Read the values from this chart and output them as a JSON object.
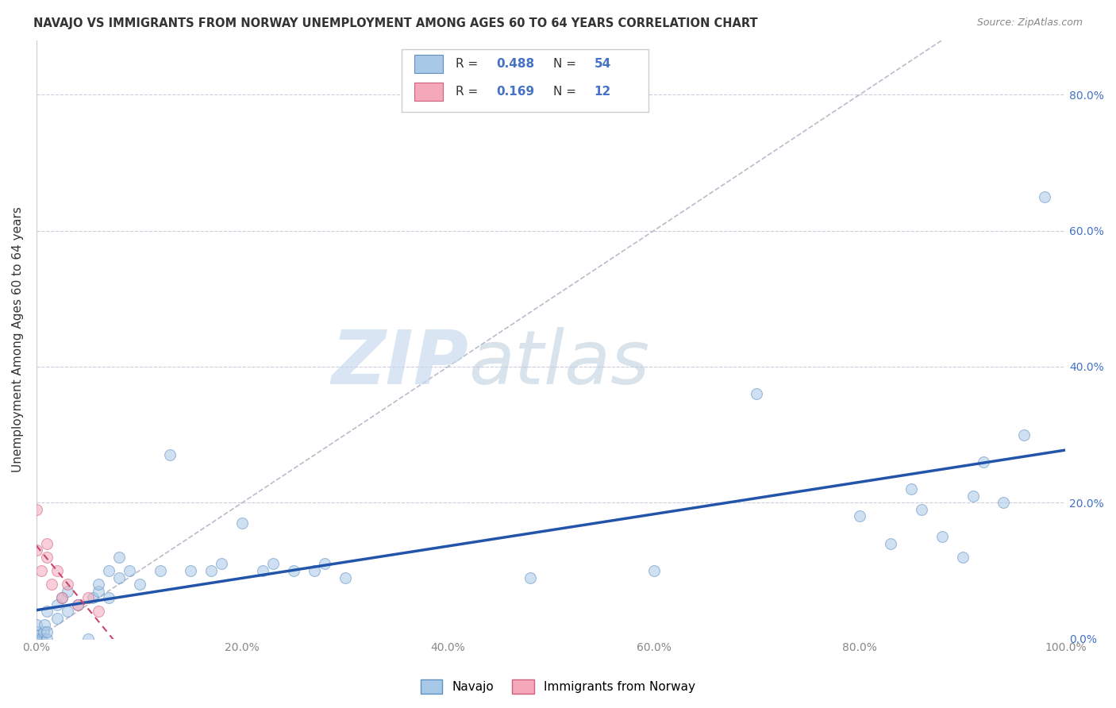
{
  "title": "NAVAJO VS IMMIGRANTS FROM NORWAY UNEMPLOYMENT AMONG AGES 60 TO 64 YEARS CORRELATION CHART",
  "source": "Source: ZipAtlas.com",
  "ylabel": "Unemployment Among Ages 60 to 64 years",
  "xlim": [
    0,
    1.0
  ],
  "ylim": [
    0,
    0.88
  ],
  "xticks": [
    0.0,
    0.2,
    0.4,
    0.6,
    0.8,
    1.0
  ],
  "yticks": [
    0.0,
    0.2,
    0.4,
    0.6,
    0.8
  ],
  "xticklabels": [
    "0.0%",
    "20.0%",
    "40.0%",
    "60.0%",
    "80.0%",
    "100.0%"
  ],
  "yticklabels_right": [
    "0.0%",
    "20.0%",
    "40.0%",
    "60.0%",
    "80.0%"
  ],
  "navajo_color": "#A8C8E8",
  "norway_color": "#F4A8B8",
  "navajo_edge_color": "#6090C0",
  "norway_edge_color": "#D06080",
  "line_color_navajo": "#2255AA",
  "line_color_norway": "#CC4466",
  "diagonal_color": "#BBBBCC",
  "R_navajo": "0.488",
  "N_navajo": "54",
  "R_norway": "0.169",
  "N_norway": "12",
  "navajo_x": [
    0.0,
    0.0,
    0.0,
    0.0,
    0.0,
    0.0,
    0.005,
    0.007,
    0.008,
    0.01,
    0.01,
    0.01,
    0.02,
    0.02,
    0.025,
    0.03,
    0.03,
    0.04,
    0.05,
    0.055,
    0.06,
    0.06,
    0.07,
    0.07,
    0.08,
    0.08,
    0.09,
    0.1,
    0.12,
    0.13,
    0.15,
    0.17,
    0.18,
    0.2,
    0.22,
    0.23,
    0.25,
    0.27,
    0.28,
    0.3,
    0.48,
    0.6,
    0.7,
    0.8,
    0.83,
    0.85,
    0.86,
    0.88,
    0.9,
    0.91,
    0.92,
    0.94,
    0.96,
    0.98
  ],
  "navajo_y": [
    0.0,
    0.0,
    0.0,
    0.005,
    0.01,
    0.02,
    0.0,
    0.01,
    0.02,
    0.0,
    0.01,
    0.04,
    0.03,
    0.05,
    0.06,
    0.04,
    0.07,
    0.05,
    0.0,
    0.06,
    0.07,
    0.08,
    0.06,
    0.1,
    0.09,
    0.12,
    0.1,
    0.08,
    0.1,
    0.27,
    0.1,
    0.1,
    0.11,
    0.17,
    0.1,
    0.11,
    0.1,
    0.1,
    0.11,
    0.09,
    0.09,
    0.1,
    0.36,
    0.18,
    0.14,
    0.22,
    0.19,
    0.15,
    0.12,
    0.21,
    0.26,
    0.2,
    0.3,
    0.65
  ],
  "norway_x": [
    0.0,
    0.0,
    0.005,
    0.01,
    0.01,
    0.015,
    0.02,
    0.025,
    0.03,
    0.04,
    0.05,
    0.06
  ],
  "norway_y": [
    0.19,
    0.13,
    0.1,
    0.12,
    0.14,
    0.08,
    0.1,
    0.06,
    0.08,
    0.05,
    0.06,
    0.04
  ],
  "watermark_zip": "ZIP",
  "watermark_atlas": "atlas",
  "marker_size": 100,
  "alpha_fill": 0.55,
  "tick_color": "#888888",
  "right_tick_color": "#4472C4",
  "legend_text_color": "#4472C4"
}
